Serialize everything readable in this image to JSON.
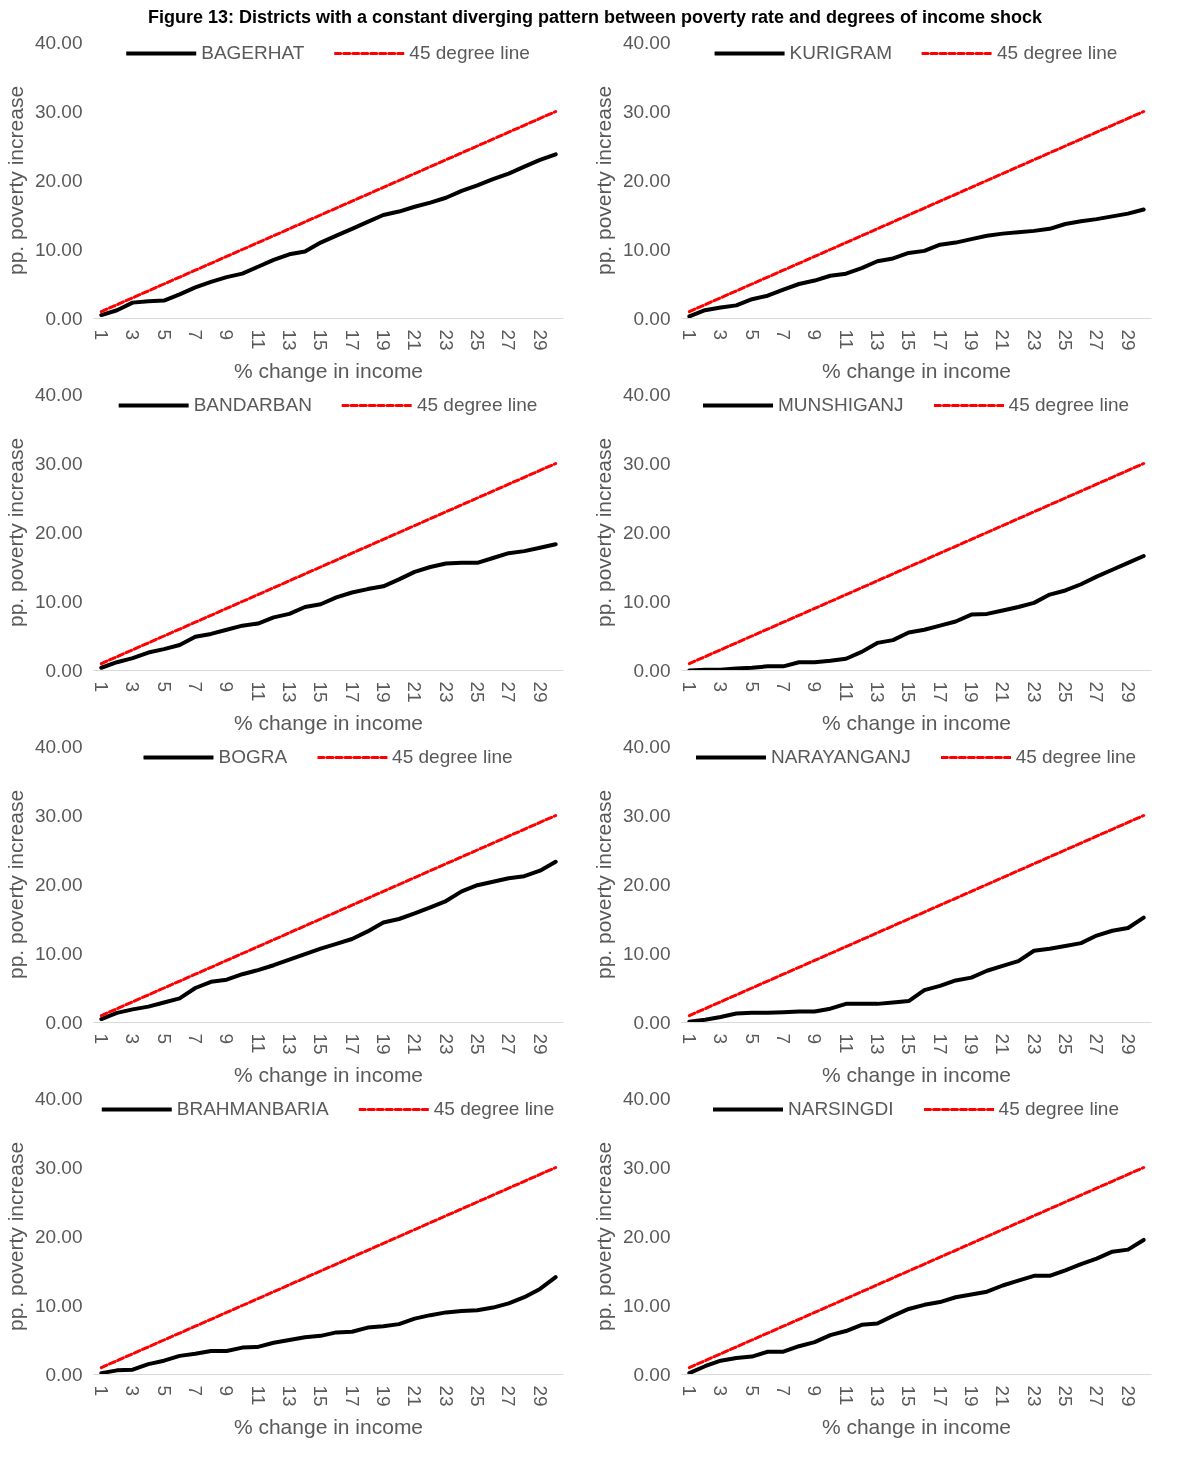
{
  "chart_data": [
    {
      "type": "other",
      "title": "Figure 13: Districts with a constant diverging pattern between poverty rate and degrees of income shock"
    },
    {
      "type": "line",
      "xlabel": "% change in income",
      "ylabel": "pp. poverty increase",
      "legend": "top",
      "ylim": [
        0,
        40
      ],
      "yticks": [
        {
          "value": 0,
          "label": "0.00"
        },
        {
          "value": 10,
          "label": "10.00"
        },
        {
          "value": 20,
          "label": "20.00"
        },
        {
          "value": 30,
          "label": "30.00"
        },
        {
          "value": 40,
          "label": "40.00"
        }
      ],
      "categories": [
        "1",
        null,
        "3",
        null,
        "5",
        null,
        "7",
        null,
        "9",
        null,
        "11",
        null,
        "13",
        null,
        "15",
        null,
        "17",
        null,
        "19",
        null,
        "21",
        null,
        "23",
        null,
        "25",
        null,
        "27",
        null,
        "29",
        null
      ],
      "series": [
        {
          "name": "BAGERHAT",
          "color": "#000000",
          "line_style": "solid",
          "values": [
            0.5,
            1.2,
            2.3,
            2.5,
            2.6,
            3.5,
            4.5,
            5.3,
            6.0,
            6.5,
            7.5,
            8.5,
            9.3,
            9.7,
            11,
            12,
            13,
            14,
            15,
            15.5,
            16.2,
            16.8,
            17.5,
            18.5,
            19.3,
            20.2,
            21,
            22,
            23,
            23.8
          ]
        },
        {
          "name": "45 degree line",
          "color": "#ff0000",
          "line_style": "dashed",
          "values": [
            1,
            2,
            3,
            4,
            5,
            6,
            7,
            8,
            9,
            10,
            11,
            12,
            13,
            14,
            15,
            16,
            17,
            18,
            19,
            20,
            21,
            22,
            23,
            24,
            25,
            26,
            27,
            28,
            29,
            30
          ]
        }
      ]
    },
    {
      "type": "line",
      "xlabel": "% change in income",
      "ylabel": "pp. poverty increase",
      "legend": "top",
      "ylim": [
        0,
        40
      ],
      "yticks": [
        {
          "value": 0,
          "label": "0.00"
        },
        {
          "value": 10,
          "label": "10.00"
        },
        {
          "value": 20,
          "label": "20.00"
        },
        {
          "value": 30,
          "label": "30.00"
        },
        {
          "value": 40,
          "label": "40.00"
        }
      ],
      "categories": [
        "1",
        null,
        "3",
        null,
        "5",
        null,
        "7",
        null,
        "9",
        null,
        "11",
        null,
        "13",
        null,
        "15",
        null,
        "17",
        null,
        "19",
        null,
        "21",
        null,
        "23",
        null,
        "25",
        null,
        "27",
        null,
        "29",
        null
      ],
      "series": [
        {
          "name": "KURIGRAM",
          "color": "#000000",
          "line_style": "solid",
          "values": [
            0.3,
            1.2,
            1.6,
            1.9,
            2.8,
            3.3,
            4.2,
            5,
            5.5,
            6.2,
            6.5,
            7.3,
            8.3,
            8.7,
            9.5,
            9.8,
            10.7,
            11,
            11.5,
            12,
            12.3,
            12.5,
            12.7,
            13,
            13.7,
            14.1,
            14.4,
            14.8,
            15.2,
            15.8
          ]
        },
        {
          "name": "45 degree line",
          "color": "#ff0000",
          "line_style": "dashed",
          "values": [
            1,
            2,
            3,
            4,
            5,
            6,
            7,
            8,
            9,
            10,
            11,
            12,
            13,
            14,
            15,
            16,
            17,
            18,
            19,
            20,
            21,
            22,
            23,
            24,
            25,
            26,
            27,
            28,
            29,
            30
          ]
        }
      ]
    },
    {
      "type": "line",
      "xlabel": "% change in income",
      "ylabel": "pp. poverty increase",
      "legend": "top",
      "ylim": [
        0,
        40
      ],
      "yticks": [
        {
          "value": 0,
          "label": "0.00"
        },
        {
          "value": 10,
          "label": "10.00"
        },
        {
          "value": 20,
          "label": "20.00"
        },
        {
          "value": 30,
          "label": "30.00"
        },
        {
          "value": 40,
          "label": "40.00"
        }
      ],
      "categories": [
        "1",
        null,
        "3",
        null,
        "5",
        null,
        "7",
        null,
        "9",
        null,
        "11",
        null,
        "13",
        null,
        "15",
        null,
        "17",
        null,
        "19",
        null,
        "21",
        null,
        "23",
        null,
        "25",
        null,
        "27",
        null,
        "29",
        null
      ],
      "series": [
        {
          "name": "BANDARBAN",
          "color": "#000000",
          "line_style": "solid",
          "values": [
            0.4,
            1.2,
            1.8,
            2.6,
            3.1,
            3.7,
            4.9,
            5.3,
            5.9,
            6.5,
            6.8,
            7.7,
            8.2,
            9.2,
            9.6,
            10.6,
            11.3,
            11.8,
            12.2,
            13.2,
            14.3,
            15,
            15.5,
            15.6,
            15.6,
            16.3,
            17,
            17.3,
            17.8,
            18.3
          ]
        },
        {
          "name": "45 degree line",
          "color": "#ff0000",
          "line_style": "dashed",
          "values": [
            1,
            2,
            3,
            4,
            5,
            6,
            7,
            8,
            9,
            10,
            11,
            12,
            13,
            14,
            15,
            16,
            17,
            18,
            19,
            20,
            21,
            22,
            23,
            24,
            25,
            26,
            27,
            28,
            29,
            30
          ]
        }
      ]
    },
    {
      "type": "line",
      "xlabel": "% change in income",
      "ylabel": "pp. poverty increase",
      "legend": "top",
      "ylim": [
        0,
        40
      ],
      "yticks": [
        {
          "value": 0,
          "label": "0.00"
        },
        {
          "value": 10,
          "label": "10.00"
        },
        {
          "value": 20,
          "label": "20.00"
        },
        {
          "value": 30,
          "label": "30.00"
        },
        {
          "value": 40,
          "label": "40.00"
        }
      ],
      "categories": [
        "1",
        null,
        "3",
        null,
        "5",
        null,
        "7",
        null,
        "9",
        null,
        "11",
        null,
        "13",
        null,
        "15",
        null,
        "17",
        null,
        "19",
        null,
        "21",
        null,
        "23",
        null,
        "25",
        null,
        "27",
        null,
        "29",
        null
      ],
      "series": [
        {
          "name": "MUNSHIGANJ",
          "color": "#000000",
          "line_style": "solid",
          "values": [
            0,
            0.1,
            0.1,
            0.3,
            0.4,
            0.6,
            0.6,
            1.2,
            1.2,
            1.4,
            1.7,
            2.7,
            4.0,
            4.4,
            5.5,
            5.9,
            6.5,
            7.1,
            8.1,
            8.2,
            8.7,
            9.2,
            9.8,
            11,
            11.6,
            12.5,
            13.6,
            14.6,
            15.6,
            16.6
          ]
        },
        {
          "name": "45 degree line",
          "color": "#ff0000",
          "line_style": "dashed",
          "values": [
            1,
            2,
            3,
            4,
            5,
            6,
            7,
            8,
            9,
            10,
            11,
            12,
            13,
            14,
            15,
            16,
            17,
            18,
            19,
            20,
            21,
            22,
            23,
            24,
            25,
            26,
            27,
            28,
            29,
            30
          ]
        }
      ]
    },
    {
      "type": "line",
      "xlabel": "% change in income",
      "ylabel": "pp. poverty increase",
      "legend": "top",
      "ylim": [
        0,
        40
      ],
      "yticks": [
        {
          "value": 0,
          "label": "0.00"
        },
        {
          "value": 10,
          "label": "10.00"
        },
        {
          "value": 20,
          "label": "20.00"
        },
        {
          "value": 30,
          "label": "30.00"
        },
        {
          "value": 40,
          "label": "40.00"
        }
      ],
      "categories": [
        "1",
        null,
        "3",
        null,
        "5",
        null,
        "7",
        null,
        "9",
        null,
        "11",
        null,
        "13",
        null,
        "15",
        null,
        "17",
        null,
        "19",
        null,
        "21",
        null,
        "23",
        null,
        "25",
        null,
        "27",
        null,
        "29",
        null
      ],
      "series": [
        {
          "name": "BOGRA",
          "color": "#000000",
          "line_style": "solid",
          "values": [
            0.5,
            1.4,
            1.9,
            2.3,
            2.9,
            3.5,
            5,
            5.9,
            6.2,
            7,
            7.6,
            8.3,
            9.1,
            9.9,
            10.7,
            11.4,
            12.1,
            13.2,
            14.5,
            15,
            15.8,
            16.7,
            17.6,
            19,
            19.9,
            20.4,
            20.9,
            21.2,
            22,
            23.3
          ]
        },
        {
          "name": "45 degree line",
          "color": "#ff0000",
          "line_style": "dashed",
          "values": [
            1,
            2,
            3,
            4,
            5,
            6,
            7,
            8,
            9,
            10,
            11,
            12,
            13,
            14,
            15,
            16,
            17,
            18,
            19,
            20,
            21,
            22,
            23,
            24,
            25,
            26,
            27,
            28,
            29,
            30
          ]
        }
      ]
    },
    {
      "type": "line",
      "xlabel": "% change in income",
      "ylabel": "pp. poverty increase",
      "legend": "top",
      "ylim": [
        0,
        40
      ],
      "yticks": [
        {
          "value": 0,
          "label": "0.00"
        },
        {
          "value": 10,
          "label": "10.00"
        },
        {
          "value": 20,
          "label": "20.00"
        },
        {
          "value": 30,
          "label": "30.00"
        },
        {
          "value": 40,
          "label": "40.00"
        }
      ],
      "categories": [
        "1",
        null,
        "3",
        null,
        "5",
        null,
        "7",
        null,
        "9",
        null,
        "11",
        null,
        "13",
        null,
        "15",
        null,
        "17",
        null,
        "19",
        null,
        "21",
        null,
        "23",
        null,
        "25",
        null,
        "27",
        null,
        "29",
        null
      ],
      "series": [
        {
          "name": "NARAYANGANJ",
          "color": "#000000",
          "line_style": "solid",
          "values": [
            0.1,
            0.4,
            0.8,
            1.3,
            1.4,
            1.4,
            1.5,
            1.6,
            1.6,
            2,
            2.7,
            2.7,
            2.7,
            2.9,
            3.1,
            4.7,
            5.3,
            6.1,
            6.5,
            7.5,
            8.2,
            8.9,
            10.4,
            10.7,
            11.1,
            11.5,
            12.6,
            13.3,
            13.7,
            15.2
          ]
        },
        {
          "name": "45 degree line",
          "color": "#ff0000",
          "line_style": "dashed",
          "values": [
            1,
            2,
            3,
            4,
            5,
            6,
            7,
            8,
            9,
            10,
            11,
            12,
            13,
            14,
            15,
            16,
            17,
            18,
            19,
            20,
            21,
            22,
            23,
            24,
            25,
            26,
            27,
            28,
            29,
            30
          ]
        }
      ]
    },
    {
      "type": "line",
      "xlabel": "% change in income",
      "ylabel": "pp. poverty increase",
      "legend": "top",
      "ylim": [
        0,
        40
      ],
      "yticks": [
        {
          "value": 0,
          "label": "0.00"
        },
        {
          "value": 10,
          "label": "10.00"
        },
        {
          "value": 20,
          "label": "20.00"
        },
        {
          "value": 30,
          "label": "30.00"
        },
        {
          "value": 40,
          "label": "40.00"
        }
      ],
      "categories": [
        "1",
        null,
        "3",
        null,
        "5",
        null,
        "7",
        null,
        "9",
        null,
        "11",
        null,
        "13",
        null,
        "15",
        null,
        "17",
        null,
        "19",
        null,
        "21",
        null,
        "23",
        null,
        "25",
        null,
        "27",
        null,
        "29",
        null
      ],
      "series": [
        {
          "name": "BRAHMANBARIA",
          "color": "#000000",
          "line_style": "solid",
          "values": [
            0.2,
            0.6,
            0.7,
            1.5,
            2,
            2.7,
            3,
            3.4,
            3.4,
            3.9,
            4,
            4.6,
            5,
            5.4,
            5.6,
            6.1,
            6.2,
            6.8,
            7,
            7.3,
            8.1,
            8.6,
            9,
            9.2,
            9.3,
            9.7,
            10.3,
            11.2,
            12.4,
            14.1
          ]
        },
        {
          "name": "45 degree line",
          "color": "#ff0000",
          "line_style": "dashed",
          "values": [
            1,
            2,
            3,
            4,
            5,
            6,
            7,
            8,
            9,
            10,
            11,
            12,
            13,
            14,
            15,
            16,
            17,
            18,
            19,
            20,
            21,
            22,
            23,
            24,
            25,
            26,
            27,
            28,
            29,
            30
          ]
        }
      ]
    },
    {
      "type": "line",
      "xlabel": "% change in income",
      "ylabel": "pp. poverty increase",
      "legend": "top",
      "ylim": [
        0,
        40
      ],
      "yticks": [
        {
          "value": 0,
          "label": "0.00"
        },
        {
          "value": 10,
          "label": "10.00"
        },
        {
          "value": 20,
          "label": "20.00"
        },
        {
          "value": 30,
          "label": "30.00"
        },
        {
          "value": 40,
          "label": "40.00"
        }
      ],
      "categories": [
        "1",
        null,
        "3",
        null,
        "5",
        null,
        "7",
        null,
        "9",
        null,
        "11",
        null,
        "13",
        null,
        "15",
        null,
        "17",
        null,
        "19",
        null,
        "21",
        null,
        "23",
        null,
        "25",
        null,
        "27",
        null,
        "29",
        null
      ],
      "series": [
        {
          "name": "NARSINGDI",
          "color": "#000000",
          "line_style": "solid",
          "values": [
            0.2,
            1.2,
            2,
            2.4,
            2.6,
            3.3,
            3.3,
            4.1,
            4.7,
            5.7,
            6.3,
            7.2,
            7.4,
            8.5,
            9.5,
            10.1,
            10.5,
            11.2,
            11.6,
            12,
            12.9,
            13.6,
            14.3,
            14.3,
            15.1,
            16,
            16.8,
            17.8,
            18.1,
            19.5
          ]
        },
        {
          "name": "45 degree line",
          "color": "#ff0000",
          "line_style": "dashed",
          "values": [
            1,
            2,
            3,
            4,
            5,
            6,
            7,
            8,
            9,
            10,
            11,
            12,
            13,
            14,
            15,
            16,
            17,
            18,
            19,
            20,
            21,
            22,
            23,
            24,
            25,
            26,
            27,
            28,
            29,
            30
          ]
        }
      ]
    }
  ]
}
